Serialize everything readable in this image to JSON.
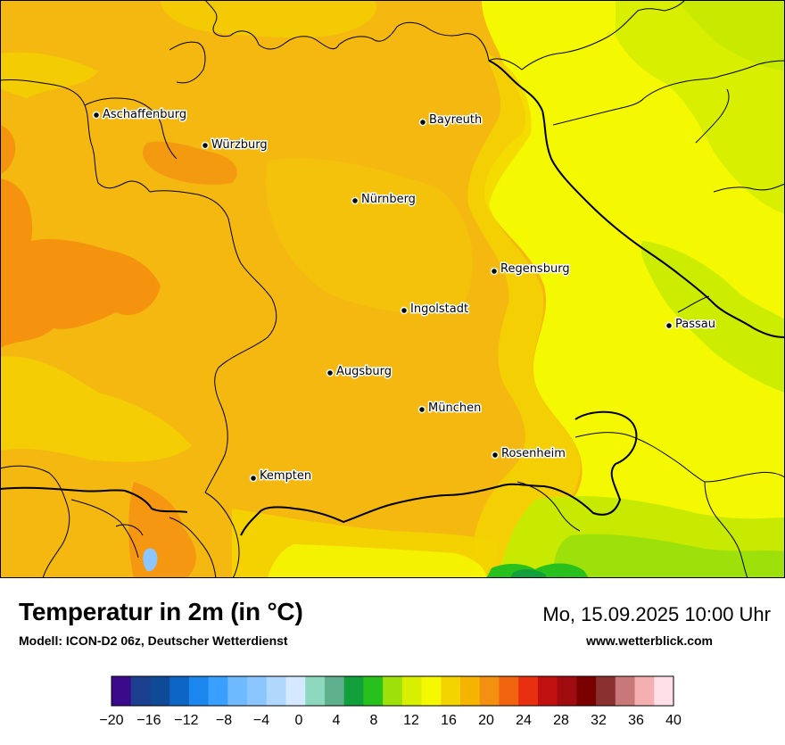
{
  "map": {
    "cities": [
      {
        "name": "Aschaffenburg"
      },
      {
        "name": "Würzburg"
      },
      {
        "name": "Bayreuth"
      },
      {
        "name": "Nürnberg"
      },
      {
        "name": "Regensburg"
      },
      {
        "name": "Ingolstadt"
      },
      {
        "name": "Passau"
      },
      {
        "name": "Augsburg"
      },
      {
        "name": "München"
      },
      {
        "name": "Rosenheim"
      },
      {
        "name": "Kempten"
      }
    ]
  },
  "header": {
    "title": "Temperatur in 2m (in °C)",
    "subtitle": "Modell: ICON-D2 06z, Deutscher Wetterdienst",
    "datetime": "Mo, 15.09.2025 10:00 Uhr",
    "website": "www.wetterblick.com"
  },
  "legend": {
    "min": -20,
    "max": 40,
    "colors": [
      "#3a0a8a",
      "#1d3f8f",
      "#0f4a96",
      "#0d66c4",
      "#1a86ee",
      "#3aa0ff",
      "#6fbaff",
      "#8cc6ff",
      "#b0d8ff",
      "#d4e9ff",
      "#8ed8c0",
      "#5fb08c",
      "#12a03c",
      "#28c01c",
      "#9ee00a",
      "#d8f000",
      "#f4f800",
      "#f4d400",
      "#f4b400",
      "#f49010",
      "#f06410",
      "#e83010",
      "#c01010",
      "#a00c10",
      "#7a0000",
      "#8a3030",
      "#c87878",
      "#f4b0b0",
      "#ffe0e8"
    ],
    "tick_labels": [
      "−20",
      "−16",
      "−12",
      "−8",
      "−4",
      "0",
      "4",
      "8",
      "12",
      "16",
      "20",
      "24",
      "28",
      "32",
      "36",
      "40"
    ]
  }
}
